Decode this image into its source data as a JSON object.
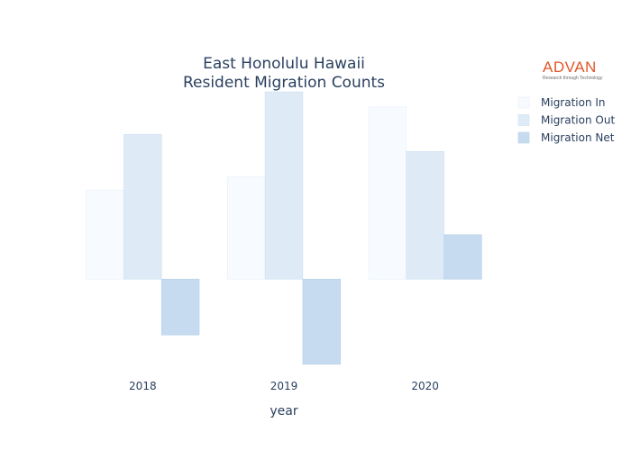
{
  "chart_data": {
    "type": "bar",
    "title_lines": [
      "East Honolulu Hawaii",
      "Resident Migration Counts"
    ],
    "xlabel": "year",
    "ylabel": "",
    "categories": [
      "2018",
      "2019",
      "2020"
    ],
    "series": [
      {
        "name": "Migration In",
        "values": [
          94,
          108,
          182
        ],
        "color": "#f7fbff",
        "stroke": "#e6eef8"
      },
      {
        "name": "Migration Out",
        "values": [
          153,
          198,
          135
        ],
        "color": "#deebf7",
        "stroke": "#cddff2"
      },
      {
        "name": "Migration Net",
        "values": [
          -59,
          -90,
          47
        ],
        "color": "#c6dbef",
        "stroke": "#b7d0ea"
      }
    ],
    "ylim": [
      -95,
      200
    ],
    "grid": false,
    "legend_position": "top-right"
  },
  "logo": {
    "main": "ADVAN",
    "sub": "Research through Technology"
  }
}
